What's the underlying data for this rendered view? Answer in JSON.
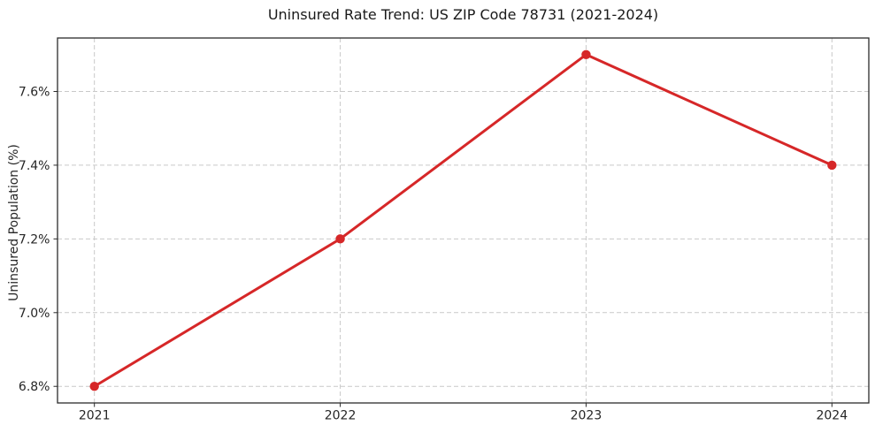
{
  "chart_data": {
    "type": "line",
    "title": "Uninsured Rate Trend: US ZIP Code 78731 (2021-2024)",
    "xlabel": "",
    "ylabel": "Uninsured Population (%)",
    "categories": [
      "2021",
      "2022",
      "2023",
      "2024"
    ],
    "x": [
      2021,
      2022,
      2023,
      2024
    ],
    "series": [
      {
        "name": "Uninsured rate (%)",
        "values": [
          6.8,
          7.2,
          7.7,
          7.4
        ]
      }
    ],
    "y_ticks": [
      6.8,
      7.0,
      7.2,
      7.4,
      7.6
    ],
    "y_tick_labels": [
      "6.8%",
      "7.0%",
      "7.2%",
      "7.4%",
      "7.6%"
    ],
    "xlim": [
      2020.85,
      2024.15
    ],
    "ylim": [
      6.755,
      7.745
    ],
    "grid": true,
    "grid_style": "dashed",
    "legend": "none",
    "colors": {
      "line": "#d62728",
      "marker": "#d62728",
      "grid": "#c9c9c9",
      "spine": "#2b2b2b",
      "tick_text": "#262626",
      "background": "#ffffff"
    }
  }
}
